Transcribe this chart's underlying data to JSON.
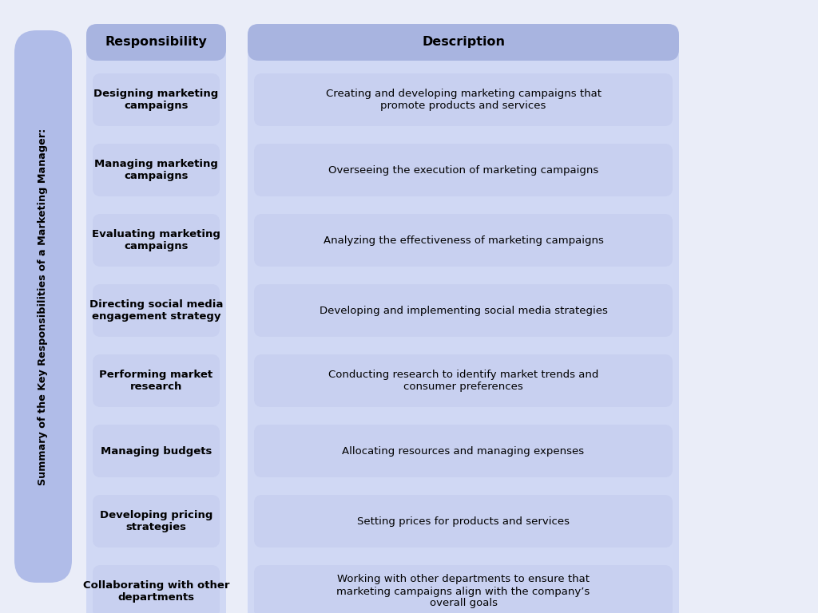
{
  "background_color": "#eaedf8",
  "sidebar_label": "Summary of the Key Responsibilities of a Marketing Manager:",
  "sidebar_bg": "#b0bce8",
  "sidebar_text_color": "#000000",
  "header_bg": "#a8b4e0",
  "header_text_color": "#000000",
  "outer_bg": "#d0d8f4",
  "cell_bg": "#c8d0f0",
  "cell_text_color": "#111111",
  "col1_header": "Responsibility",
  "col2_header": "Description",
  "rows": [
    {
      "responsibility": "Designing marketing\ncampaigns",
      "description": "Creating and developing marketing campaigns that\npromote products and services"
    },
    {
      "responsibility": "Managing marketing\ncampaigns",
      "description": "Overseeing the execution of marketing campaigns"
    },
    {
      "responsibility": "Evaluating marketing\ncampaigns",
      "description": "Analyzing the effectiveness of marketing campaigns"
    },
    {
      "responsibility": "Directing social media\nengagement strategy",
      "description": "Developing and implementing social media strategies"
    },
    {
      "responsibility": "Performing market\nresearch",
      "description": "Conducting research to identify market trends and\nconsumer preferences"
    },
    {
      "responsibility": "Managing budgets",
      "description": "Allocating resources and managing expenses"
    },
    {
      "responsibility": "Developing pricing\nstrategies",
      "description": "Setting prices for products and services"
    },
    {
      "responsibility": "Collaborating with other\ndepartments",
      "description": "Working with other departments to ensure that\nmarketing campaigns align with the company’s\noverall goals"
    }
  ]
}
